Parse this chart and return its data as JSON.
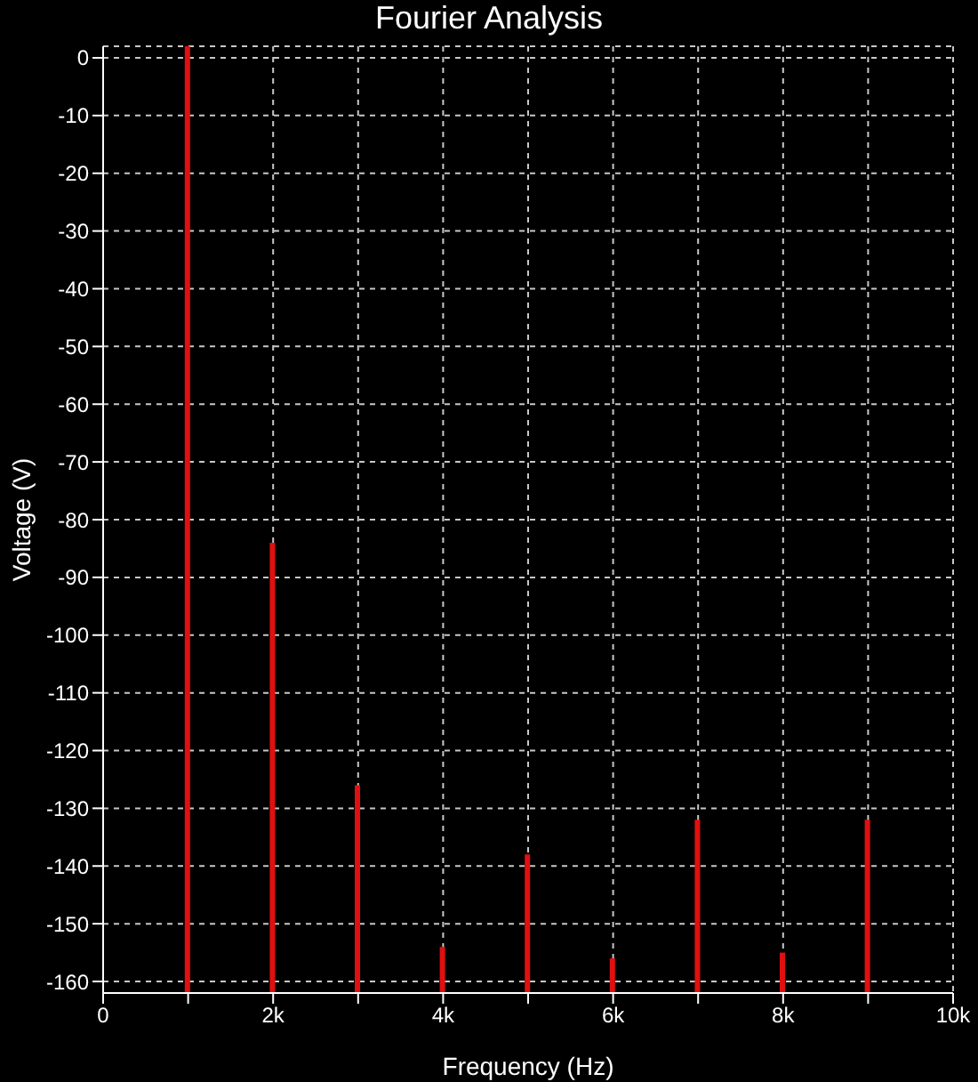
{
  "chart_data": {
    "type": "bar",
    "title": "Fourier Analysis",
    "xlabel": "Frequency (Hz)",
    "ylabel": "Voltage (V)",
    "x": [
      1000,
      2000,
      3000,
      4000,
      5000,
      6000,
      7000,
      8000,
      9000
    ],
    "base": [
      -162,
      -162,
      -162,
      -162,
      -162,
      -162,
      -162,
      -162,
      -162
    ],
    "values": [
      164,
      78,
      36,
      8,
      24,
      6,
      30,
      7,
      30
    ],
    "color": "#e01010",
    "xlim": [
      0,
      10000
    ],
    "xticks": [
      0,
      {
        "value": 1000,
        "label": null
      },
      {
        "value": 2000,
        "label": "2k"
      },
      {
        "value": 3000,
        "label": null
      },
      {
        "value": 4000,
        "label": "4k"
      },
      {
        "value": 5000,
        "label": null
      },
      {
        "value": 6000,
        "label": "6k"
      },
      {
        "value": 7000,
        "label": null
      },
      {
        "value": 8000,
        "label": "8k"
      },
      {
        "value": 9000,
        "label": null
      },
      {
        "value": 10000,
        "label": "10k"
      }
    ],
    "ylim": [
      -162,
      2
    ],
    "yticks": [
      0,
      -10,
      -20,
      -30,
      -40,
      -50,
      -60,
      -70,
      -80,
      -90,
      -100,
      -110,
      -120,
      -130,
      -140,
      -150,
      -160
    ],
    "grid": true,
    "legend": false
  }
}
